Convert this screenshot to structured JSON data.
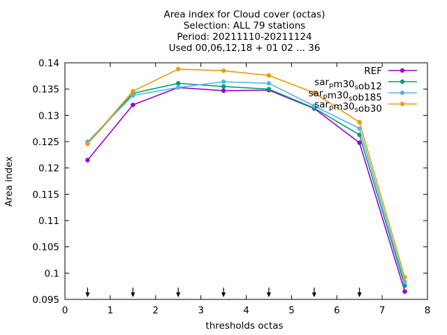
{
  "chart_data": {
    "type": "line",
    "title_lines": [
      "Area index  for Cloud cover (octas)",
      "Selection: ALL      79 stations",
      "Period: 20211110-20211124",
      "Used 00,06,12,18 + 01 02 ... 36"
    ],
    "xlabel": "thresholds octas",
    "ylabel": "Area index",
    "xlim": [
      0,
      8
    ],
    "ylim": [
      0.095,
      0.14
    ],
    "x_ticks": [
      "0",
      "1",
      "2",
      "3",
      "4",
      "5",
      "6",
      "7",
      "8"
    ],
    "y_ticks": [
      "0.095",
      "0.1",
      "0.105",
      "0.11",
      "0.115",
      "0.12",
      "0.125",
      "0.13",
      "0.135",
      "0.14"
    ],
    "legend_position": "top-right",
    "x": [
      0.5,
      1.5,
      2.5,
      3.5,
      4.5,
      5.5,
      6.5,
      7.5
    ],
    "arrows_at_x": [
      0.5,
      1.5,
      2.5,
      3.5,
      4.5,
      5.5,
      6.5
    ],
    "series": [
      {
        "name": "REF",
        "label_parts": [
          {
            "t": "REF"
          }
        ],
        "color": "#9400d3",
        "values": [
          0.1215,
          0.132,
          0.1353,
          0.1347,
          0.1348,
          0.1313,
          0.1248,
          0.0965
        ]
      },
      {
        "name": "sar_pm30_sob12",
        "label_parts": [
          {
            "t": "sar"
          },
          {
            "t": "p",
            "sub": true
          },
          {
            "t": "m30"
          },
          {
            "t": "s",
            "sub": true
          },
          {
            "t": "ob12"
          }
        ],
        "color": "#009e73",
        "values": [
          0.1246,
          0.1342,
          0.1361,
          0.1355,
          0.135,
          0.1314,
          0.1263,
          0.0976
        ]
      },
      {
        "name": "sar_pm30_sob185",
        "label_parts": [
          {
            "t": "sar"
          },
          {
            "t": "p",
            "sub": true
          },
          {
            "t": "m30"
          },
          {
            "t": "s",
            "sub": true
          },
          {
            "t": "ob185"
          }
        ],
        "color": "#56b4e9",
        "values": [
          0.125,
          0.1338,
          0.1353,
          0.1364,
          0.1361,
          0.1318,
          0.1275,
          0.0983
        ]
      },
      {
        "name": "sar_pm30_sob30",
        "label_parts": [
          {
            "t": "sar"
          },
          {
            "t": "p",
            "sub": true
          },
          {
            "t": "m30"
          },
          {
            "t": "s",
            "sub": true
          },
          {
            "t": "ob30"
          }
        ],
        "color": "#e69f00",
        "values": [
          0.1246,
          0.1346,
          0.1388,
          0.1385,
          0.1376,
          0.1343,
          0.1287,
          0.0992
        ]
      }
    ]
  }
}
